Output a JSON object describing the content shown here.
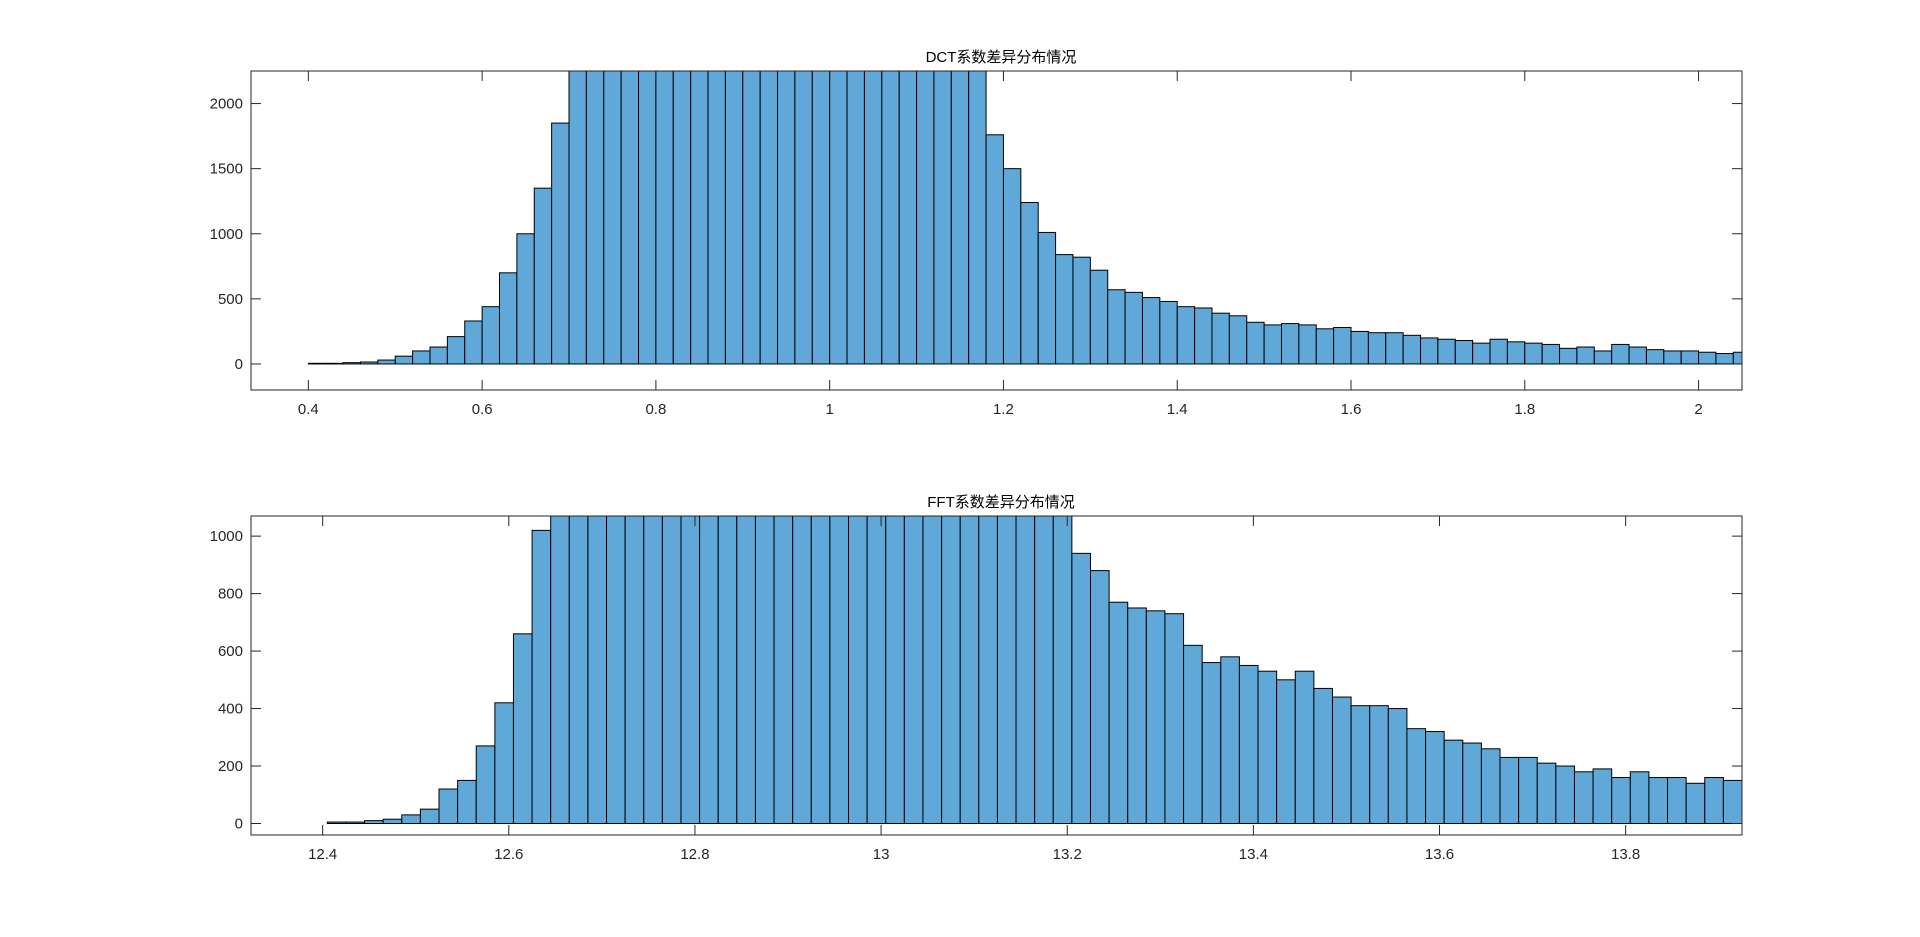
{
  "chart_data": [
    {
      "type": "bar",
      "title": "DCT系数差异分布情况",
      "xlabel": "",
      "ylabel": "",
      "xlim": [
        0.334,
        2.05
      ],
      "ylim": [
        -200,
        2250
      ],
      "xticks": [
        0.4,
        0.6,
        0.8,
        1,
        1.2,
        1.4,
        1.6,
        1.8,
        2
      ],
      "xtick_labels": [
        "0.4",
        "0.6",
        "0.8",
        "1",
        "1.2",
        "1.4",
        "1.6",
        "1.8",
        "2"
      ],
      "yticks": [
        0,
        500,
        1000,
        1500,
        2000
      ],
      "ytick_labels": [
        "0",
        "500",
        "1000",
        "1500",
        "2000"
      ],
      "bin_start": 0.36,
      "bin_width": 0.02,
      "values": [
        0,
        0,
        5,
        5,
        10,
        15,
        30,
        60,
        100,
        130,
        210,
        330,
        440,
        700,
        1000,
        1350,
        1850,
        2250,
        2250,
        2250,
        2250,
        2250,
        2250,
        2250,
        2250,
        2250,
        2250,
        2250,
        2250,
        2250,
        2250,
        2250,
        2250,
        2250,
        2250,
        2250,
        2250,
        2250,
        2250,
        2250,
        2250,
        1760,
        1500,
        1240,
        1010,
        840,
        820,
        720,
        570,
        550,
        510,
        480,
        440,
        430,
        390,
        370,
        320,
        300,
        310,
        300,
        270,
        280,
        250,
        240,
        240,
        220,
        200,
        190,
        180,
        160,
        190,
        170,
        160,
        150,
        120,
        130,
        100,
        150,
        130,
        110,
        100,
        100,
        90,
        80,
        90
      ],
      "bar_color": "#5fa8d8",
      "edge_color": "#000000",
      "grid": false
    },
    {
      "type": "bar",
      "title": "FFT系数差异分布情况",
      "xlabel": "",
      "ylabel": "",
      "xlim": [
        12.323,
        13.925
      ],
      "ylim": [
        -40,
        1070
      ],
      "xticks": [
        12.4,
        12.6,
        12.8,
        13,
        13.2,
        13.4,
        13.6,
        13.8
      ],
      "xtick_labels": [
        "12.4",
        "12.6",
        "12.8",
        "13",
        "13.2",
        "13.4",
        "13.6",
        "13.8"
      ],
      "yticks": [
        0,
        200,
        400,
        600,
        800,
        1000
      ],
      "ytick_labels": [
        "0",
        "200",
        "400",
        "600",
        "800",
        "1000"
      ],
      "bin_start": 12.365,
      "bin_width": 0.02,
      "values": [
        0,
        0,
        5,
        5,
        10,
        15,
        30,
        50,
        120,
        150,
        270,
        420,
        660,
        1020,
        1070,
        1070,
        1070,
        1070,
        1070,
        1070,
        1070,
        1070,
        1070,
        1070,
        1070,
        1070,
        1070,
        1070,
        1070,
        1070,
        1070,
        1070,
        1070,
        1070,
        1070,
        1070,
        1070,
        1070,
        1070,
        1070,
        1070,
        1070,
        940,
        880,
        770,
        750,
        740,
        730,
        620,
        560,
        580,
        550,
        530,
        500,
        530,
        470,
        440,
        410,
        410,
        400,
        330,
        320,
        290,
        280,
        260,
        230,
        230,
        210,
        200,
        180,
        190,
        160,
        180,
        160,
        160,
        140,
        160,
        150
      ],
      "bar_color": "#5fa8d8",
      "edge_color": "#000000",
      "grid": false
    }
  ]
}
